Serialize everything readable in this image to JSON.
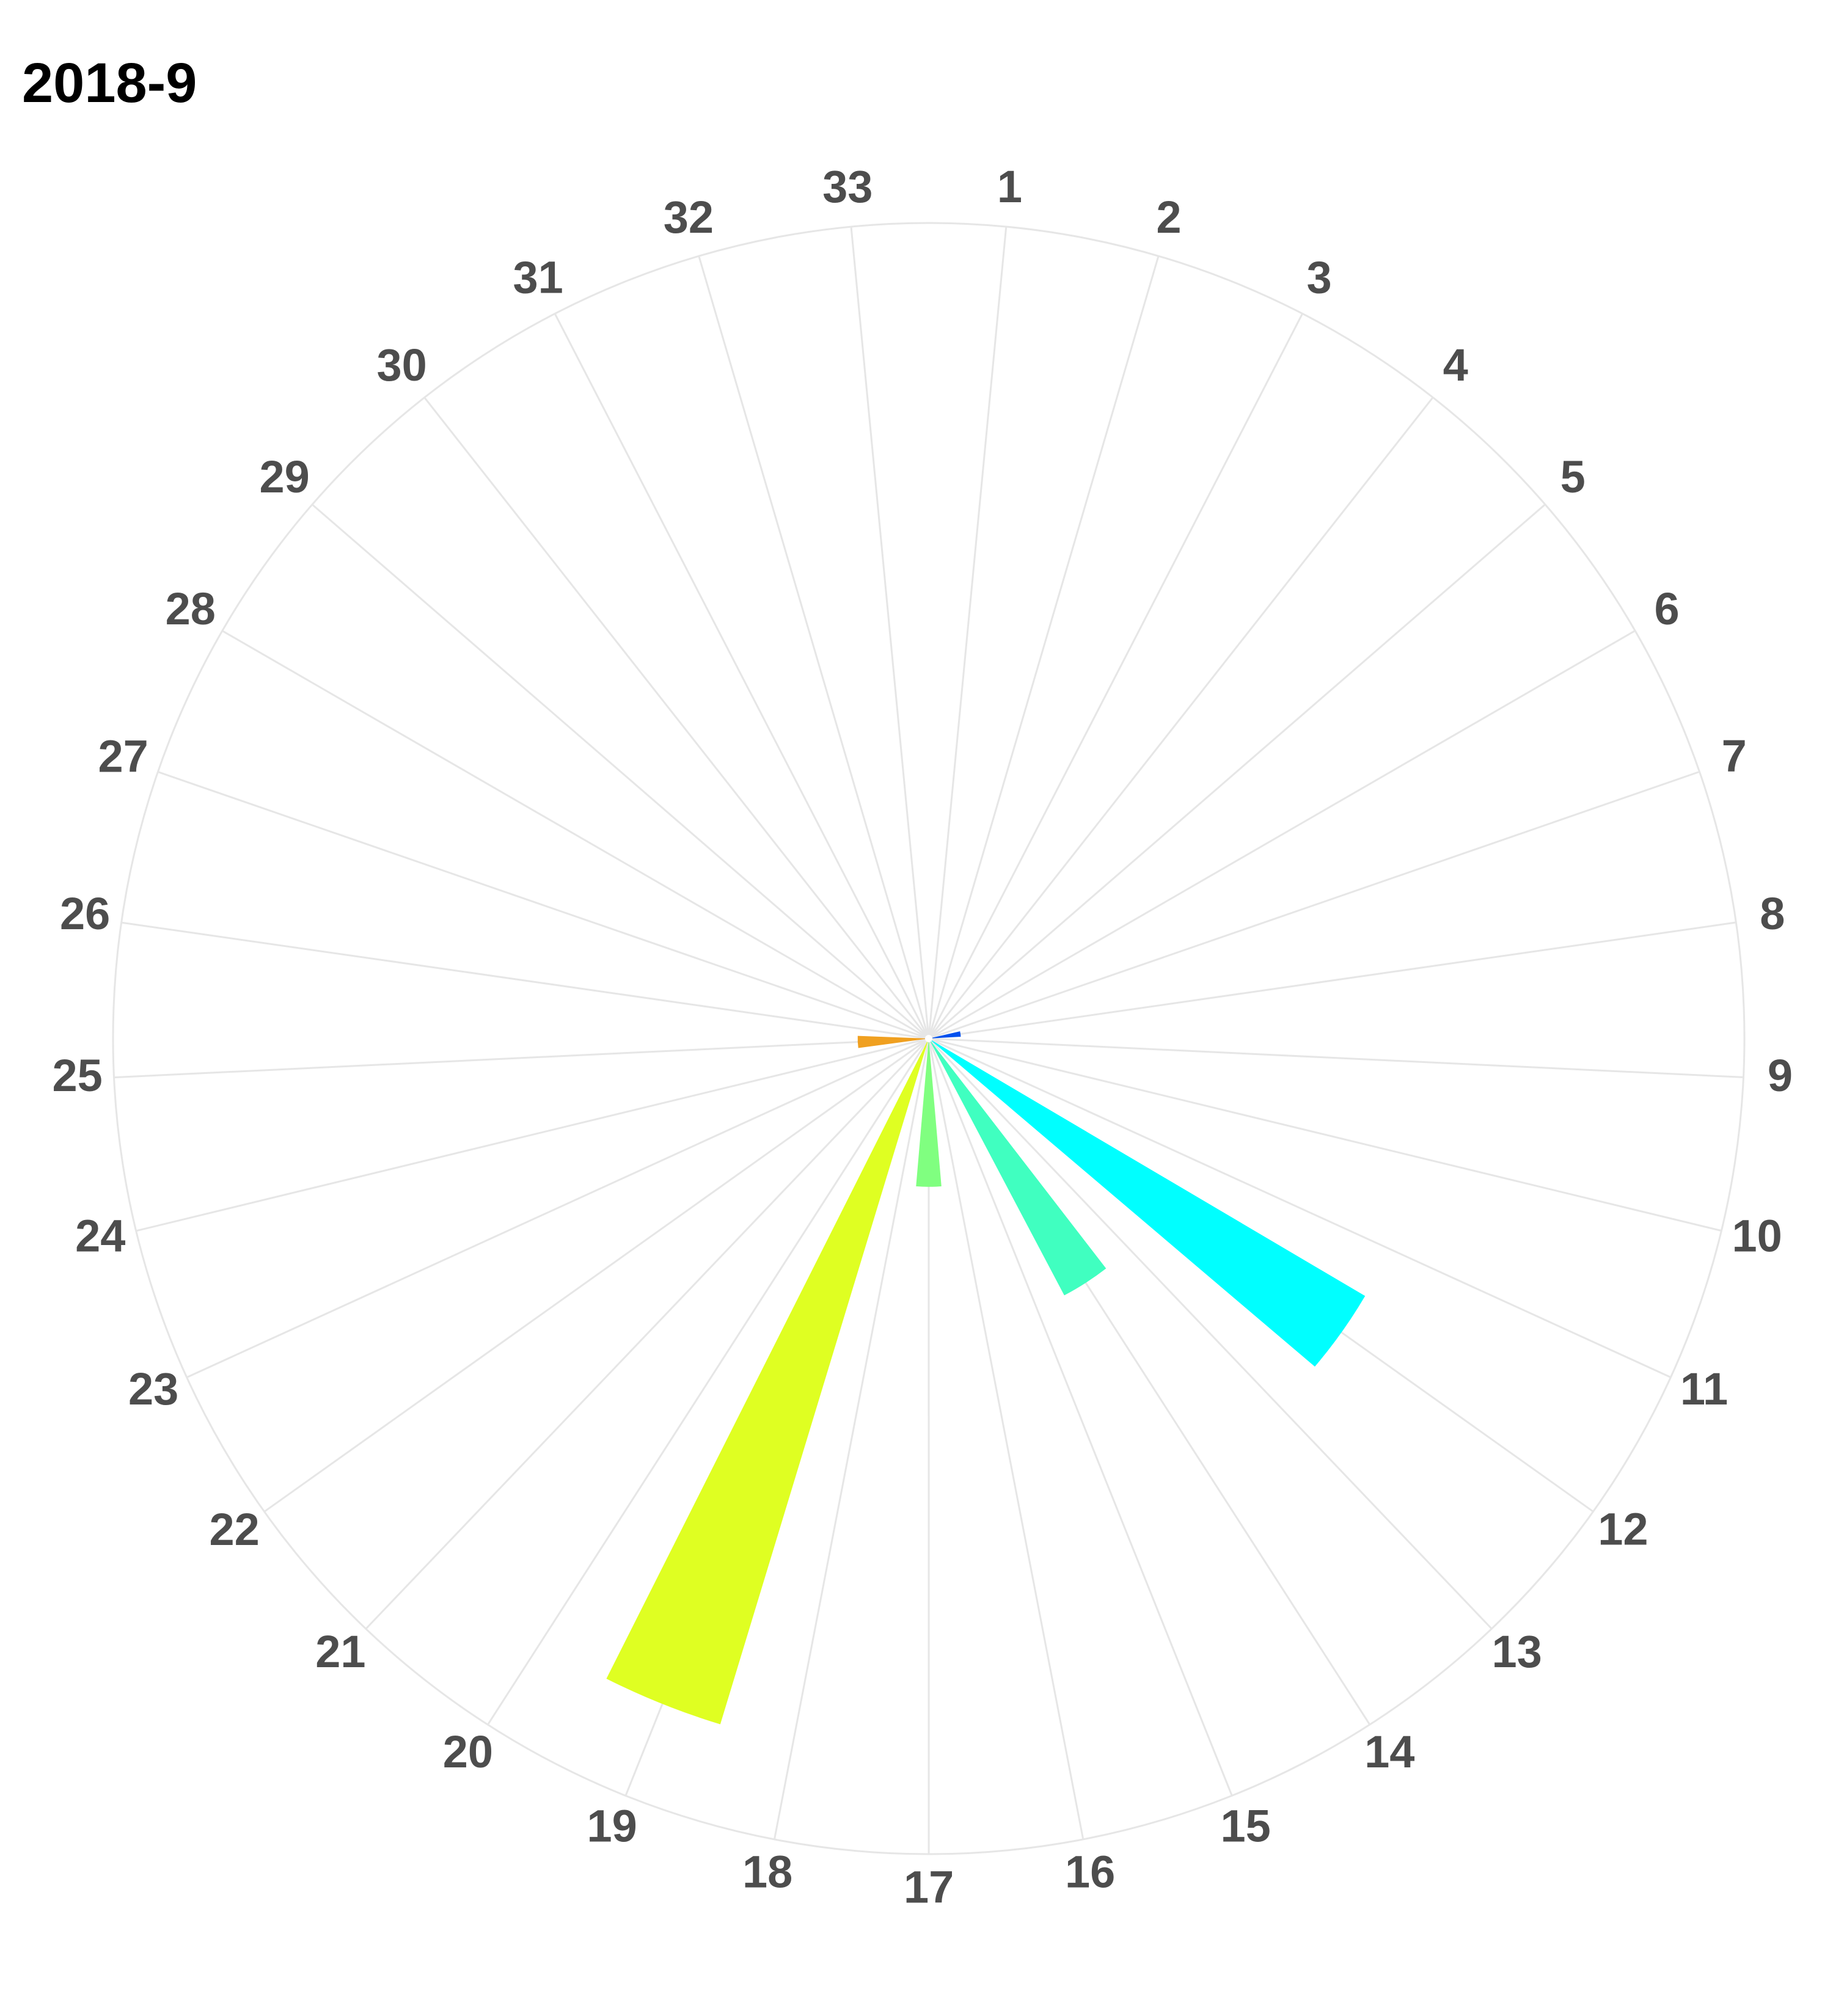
{
  "chart_data": {
    "type": "bar",
    "coordinate_system": "polar",
    "title": "2018-9",
    "xlabel": "",
    "ylabel": "",
    "grid": true,
    "legend": "none",
    "categories": [
      "1",
      "2",
      "3",
      "4",
      "5",
      "6",
      "7",
      "8",
      "9",
      "10",
      "11",
      "12",
      "13",
      "14",
      "15",
      "16",
      "17",
      "18",
      "19",
      "20",
      "21",
      "22",
      "23",
      "24",
      "25",
      "26",
      "27",
      "28",
      "29",
      "30",
      "31",
      "32",
      "33"
    ],
    "values": [
      0,
      0,
      0,
      0,
      0,
      0,
      0,
      0.52,
      0,
      0,
      0,
      8.2,
      0,
      4.7,
      0,
      0,
      2.4,
      0,
      11.6,
      0,
      0,
      0,
      0,
      0,
      1.15,
      0,
      0,
      0,
      0,
      0,
      0,
      0,
      0
    ],
    "ylim": [
      0,
      13.2
    ],
    "colors": [
      "#0000ff",
      "#0000ff",
      "#0000ff",
      "#0000ff",
      "#0000ff",
      "#0000ff",
      "#0000ff",
      "#0050ee",
      "#0080ff",
      "#00b0ff",
      "#00e0ff",
      "#00ffff",
      "#20ffe0",
      "#40ffc0",
      "#60ff9f",
      "#70ff88",
      "#80ff80",
      "#a0ff50",
      "#dfff22",
      "#ffd000",
      "#ffb000",
      "#ff9f10",
      "#f3a010",
      "#f0a020",
      "#f0a020",
      "#ff8000",
      "#ff6000",
      "#ff4000",
      "#ff2000",
      "#ff0000",
      "#e00000",
      "#c00000",
      "#a00000"
    ]
  }
}
